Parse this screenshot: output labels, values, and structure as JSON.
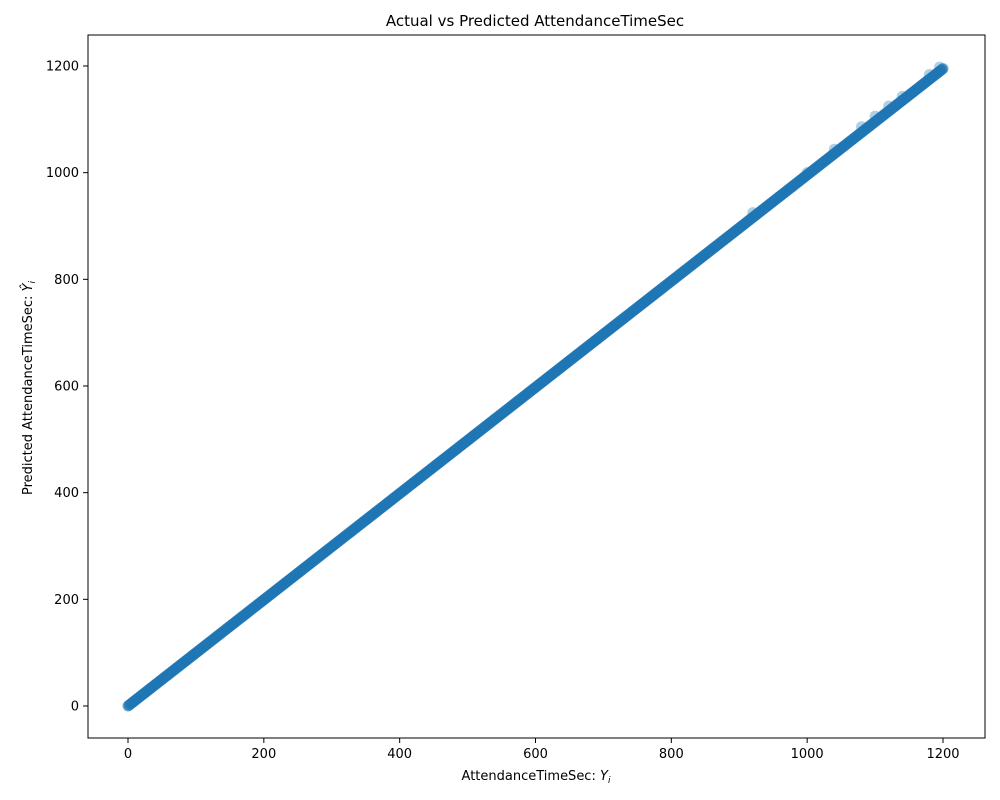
{
  "chart_data": {
    "type": "scatter",
    "title": "Actual vs Predicted AttendanceTimeSec",
    "xlabel": "AttendanceTimeSec: Y_i",
    "ylabel": "Predicted AttendanceTimeSec: Ŷ_i",
    "xlim": [
      -60,
      1260
    ],
    "ylim": [
      -60,
      1260
    ],
    "xticks": [
      0,
      200,
      400,
      600,
      800,
      1000,
      1200
    ],
    "yticks": [
      0,
      200,
      400,
      600,
      800,
      1000,
      1200
    ],
    "grid": false,
    "marker_color": "#1f77b4",
    "series": [
      {
        "x": [
          0,
          1200
        ],
        "y": [
          0,
          1195
        ],
        "relation": "y ≈ x (points densely cover the diagonal from 0 to 1200)"
      }
    ]
  }
}
